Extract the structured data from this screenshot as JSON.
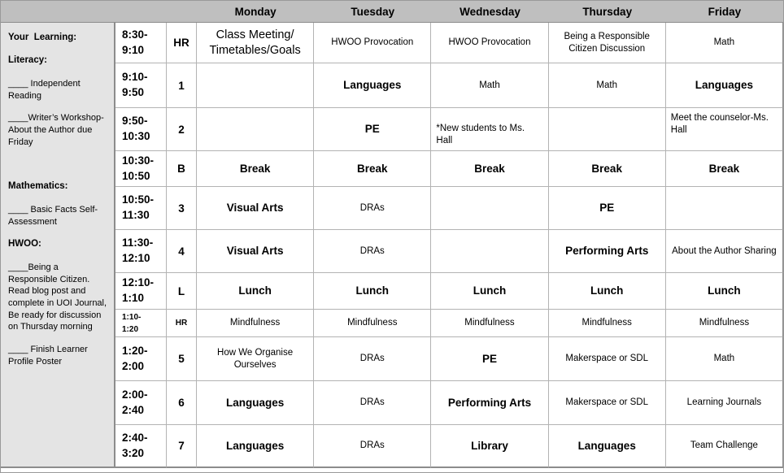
{
  "colors": {
    "header_bg": "#bfbfbf",
    "sidebar_bg": "#e4e4e4",
    "grid_line": "#b3b3b3",
    "frame": "#8c8c8c",
    "page_border": "#999999",
    "text": "#000000"
  },
  "sidebar": {
    "blocks": [
      {
        "text": "Your  Learning:",
        "bold": true
      },
      {
        "text": "Literacy:",
        "bold": true
      },
      {
        "text": "____ Independent Reading"
      },
      {
        "text": "____Writer’s Workshop-About the Author due Friday"
      },
      {
        "text": "Mathematics:",
        "bold": true,
        "gap_before": true
      },
      {
        "text": "____ Basic Facts Self-Assessment"
      },
      {
        "text": "HWOO:",
        "bold": true
      },
      {
        "text": "____Being a Responsible Citizen. Read blog post and complete in UOI Journal, Be ready for discussion on Thursday morning"
      },
      {
        "text": "____ Finish Learner Profile Poster"
      }
    ]
  },
  "timetable": {
    "day_headers": [
      "Monday",
      "Tuesday",
      "Wednesday",
      "Thursday",
      "Friday"
    ],
    "rows": [
      {
        "time": "8:30-\n9:10",
        "period": "HR",
        "cells": [
          {
            "t": "Class Meeting/\nTimetables/Goals",
            "s": "big"
          },
          {
            "t": "HWOO Provocation"
          },
          {
            "t": "HWOO Provocation"
          },
          {
            "t": "Being a Responsible Citizen Discussion"
          },
          {
            "t": "Math"
          }
        ]
      },
      {
        "time": "9:10-\n9:50",
        "period": "1",
        "cells": [
          {
            "t": ""
          },
          {
            "t": "Languages",
            "s": "bold"
          },
          {
            "t": "Math"
          },
          {
            "t": "Math"
          },
          {
            "t": "Languages",
            "s": "bold"
          }
        ]
      },
      {
        "time": "9:50-\n10:30",
        "period": "2",
        "cells": [
          {
            "t": ""
          },
          {
            "t": "PE",
            "s": "bold"
          },
          {
            "t": "*New students to Ms. Hall",
            "s": "left"
          },
          {
            "t": ""
          },
          {
            "t": "Meet the counselor-Ms. Hall",
            "s": "topleft"
          }
        ]
      },
      {
        "time": "10:30-\n10:50",
        "period": "B",
        "cells": [
          {
            "t": "Break",
            "s": "bold"
          },
          {
            "t": "Break",
            "s": "bold"
          },
          {
            "t": "Break",
            "s": "bold"
          },
          {
            "t": "Break",
            "s": "bold"
          },
          {
            "t": "Break",
            "s": "bold"
          }
        ]
      },
      {
        "time": "10:50-\n11:30",
        "period": "3",
        "cells": [
          {
            "t": "Visual Arts",
            "s": "bold"
          },
          {
            "t": "DRAs"
          },
          {
            "t": ""
          },
          {
            "t": "PE",
            "s": "bold"
          },
          {
            "t": ""
          }
        ]
      },
      {
        "time": "11:30-\n12:10",
        "period": "4",
        "cells": [
          {
            "t": "Visual Arts",
            "s": "bold"
          },
          {
            "t": "DRAs"
          },
          {
            "t": ""
          },
          {
            "t": "Performing Arts",
            "s": "bold"
          },
          {
            "t": "About the Author Sharing"
          }
        ]
      },
      {
        "time": "12:10-\n1:10",
        "period": "L",
        "cells": [
          {
            "t": "Lunch",
            "s": "bold"
          },
          {
            "t": "Lunch",
            "s": "bold"
          },
          {
            "t": "Lunch",
            "s": "bold"
          },
          {
            "t": "Lunch",
            "s": "bold"
          },
          {
            "t": "Lunch",
            "s": "bold"
          }
        ]
      },
      {
        "time": "1:10-\n1:20",
        "period": "HR",
        "small": true,
        "cells": [
          {
            "t": "Mindfulness"
          },
          {
            "t": "Mindfulness"
          },
          {
            "t": "Mindfulness"
          },
          {
            "t": "Mindfulness"
          },
          {
            "t": "Mindfulness"
          }
        ]
      },
      {
        "time": "1:20-\n2:00",
        "period": "5",
        "cells": [
          {
            "t": "How We Organise Ourselves"
          },
          {
            "t": "DRAs"
          },
          {
            "t": "PE",
            "s": "bold"
          },
          {
            "t": "Makerspace or SDL"
          },
          {
            "t": "Math"
          }
        ]
      },
      {
        "time": "2:00-\n2:40",
        "period": "6",
        "cells": [
          {
            "t": "Languages",
            "s": "bold"
          },
          {
            "t": "DRAs"
          },
          {
            "t": "Performing Arts",
            "s": "bold"
          },
          {
            "t": "Makerspace or SDL"
          },
          {
            "t": "Learning Journals"
          }
        ]
      },
      {
        "time": "2:40-\n3:20",
        "period": "7",
        "cells": [
          {
            "t": "Languages",
            "s": "bold"
          },
          {
            "t": "DRAs"
          },
          {
            "t": "Library",
            "s": "bold"
          },
          {
            "t": "Languages",
            "s": "bold"
          },
          {
            "t": "Team Challenge"
          }
        ]
      }
    ]
  }
}
